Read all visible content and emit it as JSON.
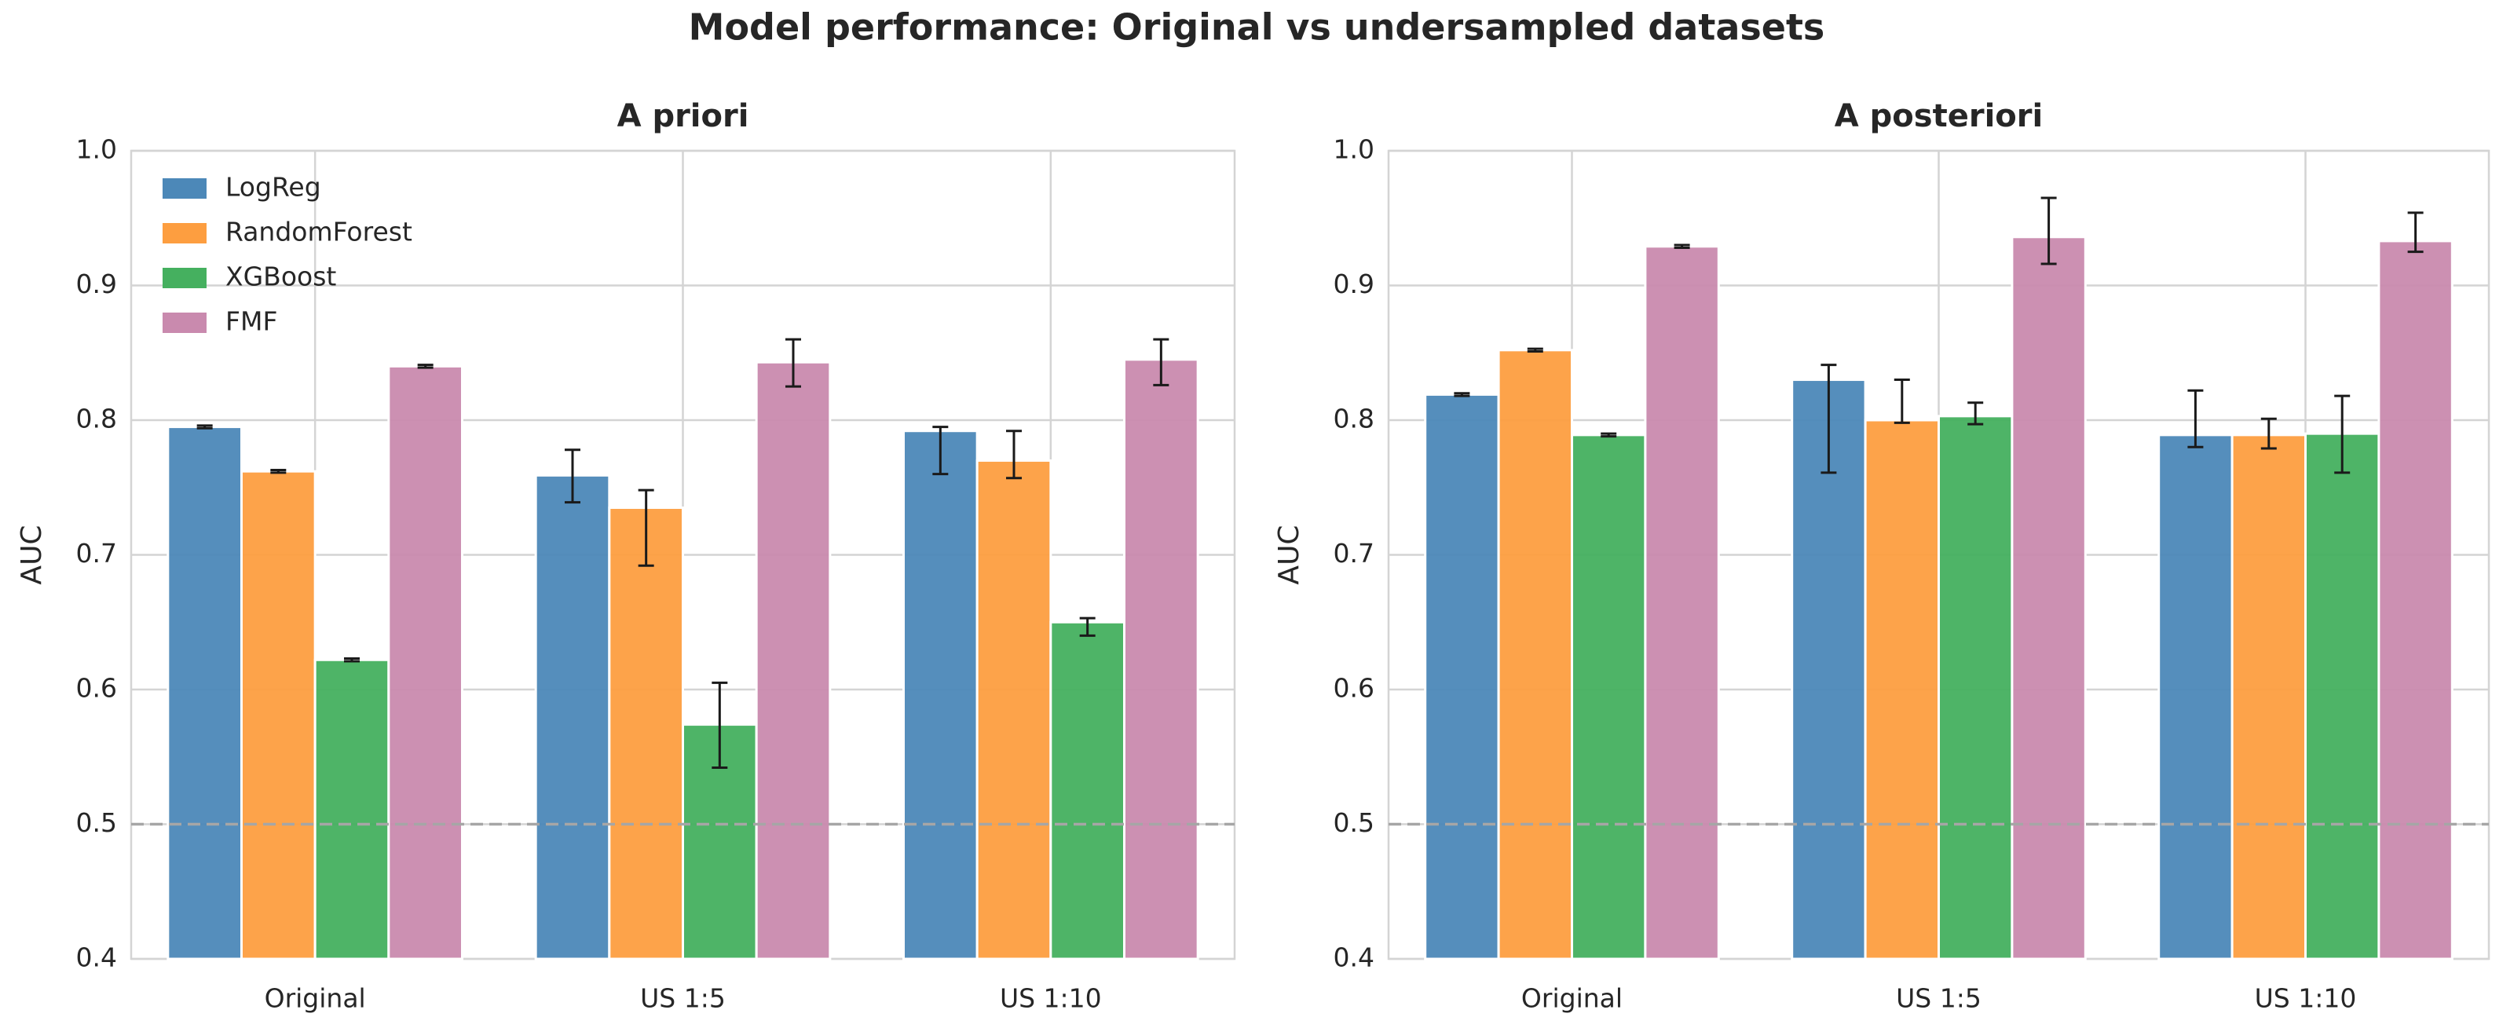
{
  "title": "Model performance: Original vs undersampled datasets",
  "chart_data": [
    {
      "type": "bar",
      "title": "A priori",
      "y_label": "AUC",
      "categories": [
        "Original",
        "US 1:5",
        "US 1:10"
      ],
      "series": [
        {
          "name": "LogReg",
          "color": "#4c88b8",
          "values": [
            0.795,
            0.759,
            0.792
          ],
          "error_low": [
            0.794,
            0.739,
            0.76
          ],
          "error_high": [
            0.796,
            0.778,
            0.795
          ]
        },
        {
          "name": "RandomForest",
          "color": "#fd9e40",
          "values": [
            0.762,
            0.735,
            0.77
          ],
          "error_low": [
            0.761,
            0.692,
            0.757
          ],
          "error_high": [
            0.763,
            0.748,
            0.792
          ]
        },
        {
          "name": "XGBoost",
          "color": "#45b05f",
          "values": [
            0.622,
            0.574,
            0.65
          ],
          "error_low": [
            0.621,
            0.542,
            0.64
          ],
          "error_high": [
            0.623,
            0.605,
            0.653
          ]
        },
        {
          "name": "FMF",
          "color": "#c98aae",
          "values": [
            0.84,
            0.843,
            0.845
          ],
          "error_low": [
            0.839,
            0.825,
            0.826
          ],
          "error_high": [
            0.841,
            0.86,
            0.86
          ]
        }
      ],
      "ylim": [
        0.4,
        1.0
      ],
      "yticks": [
        0.4,
        0.5,
        0.6,
        0.7,
        0.8,
        0.9,
        {
          "value": 1,
          "label": "1.0"
        }
      ],
      "hline": 0.5,
      "grid": true,
      "legend": "upper left"
    },
    {
      "type": "bar",
      "title": "A posteriori",
      "y_label": "AUC",
      "categories": [
        "Original",
        "US 1:5",
        "US 1:10"
      ],
      "series": [
        {
          "name": "LogReg",
          "color": "#4c88b8",
          "values": [
            0.819,
            0.83,
            0.789
          ],
          "error_low": [
            0.818,
            0.761,
            0.78
          ],
          "error_high": [
            0.82,
            0.841,
            0.822
          ]
        },
        {
          "name": "RandomForest",
          "color": "#fd9e40",
          "values": [
            0.852,
            0.8,
            0.789
          ],
          "error_low": [
            0.851,
            0.798,
            0.779
          ],
          "error_high": [
            0.853,
            0.83,
            0.801
          ]
        },
        {
          "name": "XGBoost",
          "color": "#45b05f",
          "values": [
            0.789,
            0.803,
            0.79
          ],
          "error_low": [
            0.788,
            0.797,
            0.761
          ],
          "error_high": [
            0.79,
            0.813,
            0.818
          ]
        },
        {
          "name": "FMF",
          "color": "#c98aae",
          "values": [
            0.929,
            0.936,
            0.933
          ],
          "error_low": [
            0.928,
            0.916,
            0.925
          ],
          "error_high": [
            0.93,
            0.965,
            0.954
          ]
        }
      ],
      "ylim": [
        0.4,
        1.0
      ],
      "yticks": [
        0.4,
        0.5,
        0.6,
        0.7,
        0.8,
        0.9,
        {
          "value": 1,
          "label": "1.0"
        }
      ],
      "hline": 0.5,
      "grid": true
    }
  ]
}
